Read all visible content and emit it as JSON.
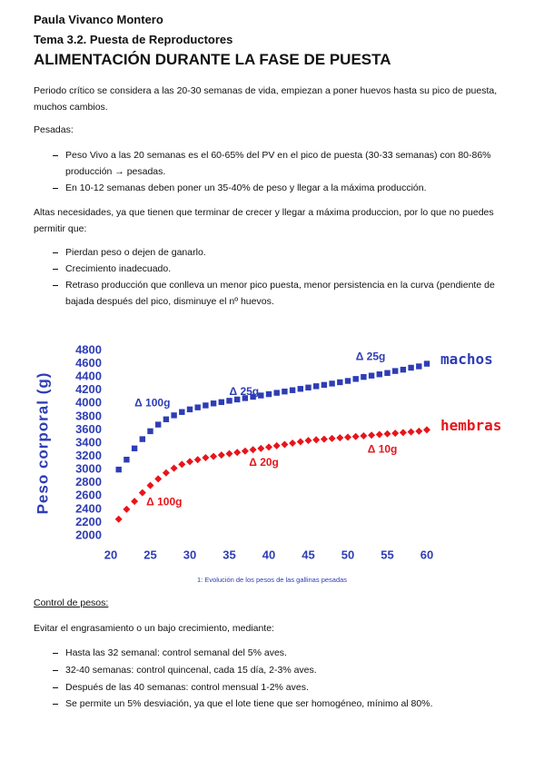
{
  "header": {
    "author": "Paula Vivanco Montero",
    "topic": "Tema 3.2. Puesta de Reproductores",
    "title": "ALIMENTACIÓN DURANTE LA FASE DE PUESTA"
  },
  "intro": "Periodo crítico se considera a las 20-30 semanas de vida, empiezan a poner huevos hasta su pico de puesta, muchos cambios.",
  "pesadas": {
    "heading": "Pesadas:",
    "items": [
      "Peso Vivo a las 20 semanas es el 60-65% del PV en el pico de puesta (30-33 semanas) con 80-86% producción → pesadas.",
      "En 10-12 semanas deben poner un 35-40% de peso y llegar a la máxima producción."
    ]
  },
  "needs": {
    "text": "Altas necesidades, ya que tienen que terminar de crecer y llegar a máxima produccion, por lo que no puedes permitir que:",
    "items": [
      "Pierdan peso o dejen de ganarlo.",
      "Crecimiento inadecuado.",
      "Retraso producción que conlleva un menor pico puesta, menor persistencia en la curva (pendiente de bajada después del pico, disminuye el  nº huevos."
    ]
  },
  "chart_data": {
    "type": "scatter",
    "ylabel": "Peso corporal (g)",
    "caption": "1: Evolución de los pesos de las gallinas pesadas",
    "x": [
      21,
      22,
      23,
      24,
      25,
      26,
      27,
      28,
      29,
      30,
      31,
      32,
      33,
      34,
      35,
      36,
      37,
      38,
      39,
      40,
      41,
      42,
      43,
      44,
      45,
      46,
      47,
      48,
      49,
      50,
      51,
      52,
      53,
      54,
      55,
      56,
      57,
      58,
      59,
      60
    ],
    "series": [
      {
        "name": "machos",
        "color": "#2e3db5",
        "marker": "square",
        "values": [
          3000,
          3150,
          3320,
          3460,
          3580,
          3680,
          3760,
          3820,
          3870,
          3910,
          3940,
          3970,
          4000,
          4020,
          4040,
          4060,
          4080,
          4100,
          4120,
          4140,
          4160,
          4180,
          4200,
          4220,
          4240,
          4260,
          4280,
          4300,
          4320,
          4340,
          4370,
          4400,
          4420,
          4440,
          4460,
          4490,
          4510,
          4540,
          4560,
          4600
        ]
      },
      {
        "name": "hembras",
        "color": "#e8141a",
        "marker": "diamond",
        "values": [
          2250,
          2400,
          2520,
          2650,
          2760,
          2860,
          2950,
          3020,
          3080,
          3120,
          3150,
          3180,
          3200,
          3220,
          3240,
          3260,
          3280,
          3300,
          3320,
          3340,
          3360,
          3380,
          3400,
          3420,
          3440,
          3450,
          3460,
          3470,
          3480,
          3490,
          3500,
          3510,
          3520,
          3530,
          3540,
          3550,
          3560,
          3570,
          3580,
          3600
        ]
      }
    ],
    "annotations": [
      {
        "text": "Δ 100g",
        "color": "#2e3db5"
      },
      {
        "text": "Δ 25g",
        "color": "#2e3db5"
      },
      {
        "text": "Δ 25g",
        "color": "#2e3db5"
      },
      {
        "text": "Δ 100g",
        "color": "#e8141a"
      },
      {
        "text": "Δ 20g",
        "color": "#e8141a"
      },
      {
        "text": "Δ 10g",
        "color": "#e8141a"
      }
    ],
    "xlim": [
      20,
      60
    ],
    "xticks": [
      20,
      25,
      30,
      35,
      40,
      45,
      50,
      55,
      60
    ],
    "ylim": [
      2000,
      4800
    ],
    "yticks": [
      2000,
      2200,
      2400,
      2600,
      2800,
      3000,
      3200,
      3400,
      3600,
      3800,
      4000,
      4200,
      4400,
      4600,
      4800
    ]
  },
  "control": {
    "heading": "Control de pesos:",
    "text": "Evitar el engrasamiento o un bajo crecimiento, mediante:",
    "items": [
      "Hasta las 32 semanal: control semanal del 5% aves.",
      "32-40 semanas: control quincenal, cada 15 día, 2-3% aves.",
      "Después de las 40 semanas: control mensual 1-2% aves.",
      "Se permite un 5% desviación, ya que el lote tiene que ser homogéneo, mínimo al 80%."
    ]
  }
}
